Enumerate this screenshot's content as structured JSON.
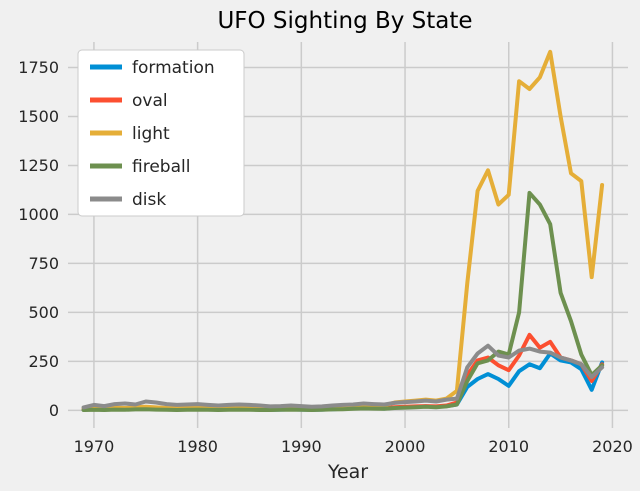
{
  "chart_data": {
    "type": "line",
    "title": "UFO Sighting By State",
    "xlabel": "Year",
    "ylabel": "",
    "grid": true,
    "legend_position": "upper left",
    "background_color": "#f0f0f0",
    "grid_color": "#cbcbcb",
    "xticks": [
      1970,
      1980,
      1990,
      2000,
      2010,
      2020
    ],
    "yticks": [
      0,
      250,
      500,
      750,
      1000,
      1250,
      1500,
      1750
    ],
    "xlim": [
      1967.5,
      2021.5
    ],
    "ylim": [
      -90,
      1880
    ],
    "x": [
      1969,
      1970,
      1971,
      1972,
      1973,
      1974,
      1975,
      1976,
      1977,
      1978,
      1979,
      1980,
      1981,
      1982,
      1983,
      1984,
      1985,
      1986,
      1987,
      1988,
      1989,
      1990,
      1991,
      1992,
      1993,
      1994,
      1995,
      1996,
      1997,
      1998,
      1999,
      2000,
      2001,
      2002,
      2003,
      2004,
      2005,
      2006,
      2007,
      2008,
      2009,
      2010,
      2011,
      2012,
      2013,
      2014,
      2015,
      2016,
      2017,
      2018,
      2019
    ],
    "series": [
      {
        "name": "formation",
        "color": "#008fd5",
        "values": [
          3,
          5,
          4,
          6,
          5,
          7,
          8,
          6,
          5,
          4,
          5,
          6,
          5,
          4,
          5,
          6,
          5,
          4,
          3,
          4,
          5,
          4,
          3,
          4,
          6,
          8,
          10,
          12,
          10,
          9,
          14,
          16,
          18,
          20,
          18,
          22,
          30,
          120,
          160,
          185,
          160,
          125,
          200,
          235,
          215,
          290,
          255,
          245,
          210,
          105,
          245
        ]
      },
      {
        "name": "oval",
        "color": "#fc4f30",
        "values": [
          4,
          6,
          5,
          7,
          6,
          8,
          9,
          7,
          6,
          5,
          6,
          7,
          6,
          5,
          6,
          7,
          6,
          5,
          4,
          5,
          6,
          5,
          4,
          5,
          7,
          9,
          11,
          13,
          12,
          11,
          16,
          18,
          20,
          22,
          20,
          25,
          40,
          180,
          255,
          270,
          230,
          205,
          280,
          385,
          320,
          350,
          270,
          255,
          235,
          150,
          235
        ]
      },
      {
        "name": "light",
        "color": "#e5ae38",
        "values": [
          8,
          12,
          10,
          14,
          12,
          16,
          18,
          15,
          12,
          10,
          12,
          14,
          12,
          10,
          12,
          14,
          12,
          10,
          8,
          10,
          12,
          10,
          8,
          12,
          16,
          20,
          25,
          30,
          28,
          26,
          40,
          45,
          50,
          55,
          50,
          60,
          100,
          650,
          1120,
          1225,
          1050,
          1100,
          1680,
          1640,
          1700,
          1830,
          1500,
          1210,
          1170,
          680,
          1150
        ]
      },
      {
        "name": "fireball",
        "color": "#6d904f",
        "values": [
          2,
          3,
          2,
          4,
          3,
          5,
          6,
          4,
          3,
          2,
          3,
          4,
          3,
          2,
          3,
          4,
          3,
          2,
          2,
          3,
          4,
          3,
          2,
          3,
          5,
          6,
          8,
          10,
          9,
          8,
          12,
          14,
          16,
          18,
          16,
          20,
          30,
          150,
          240,
          255,
          300,
          285,
          500,
          1110,
          1050,
          950,
          600,
          455,
          285,
          180,
          230
        ]
      },
      {
        "name": "disk",
        "color": "#8b8b8b",
        "values": [
          15,
          28,
          22,
          32,
          35,
          30,
          45,
          40,
          32,
          28,
          30,
          32,
          28,
          25,
          28,
          30,
          28,
          25,
          20,
          22,
          25,
          22,
          18,
          20,
          25,
          28,
          30,
          35,
          32,
          30,
          38,
          42,
          45,
          50,
          45,
          55,
          60,
          220,
          290,
          330,
          280,
          270,
          305,
          315,
          300,
          295,
          270,
          255,
          235,
          170,
          220
        ]
      }
    ]
  }
}
